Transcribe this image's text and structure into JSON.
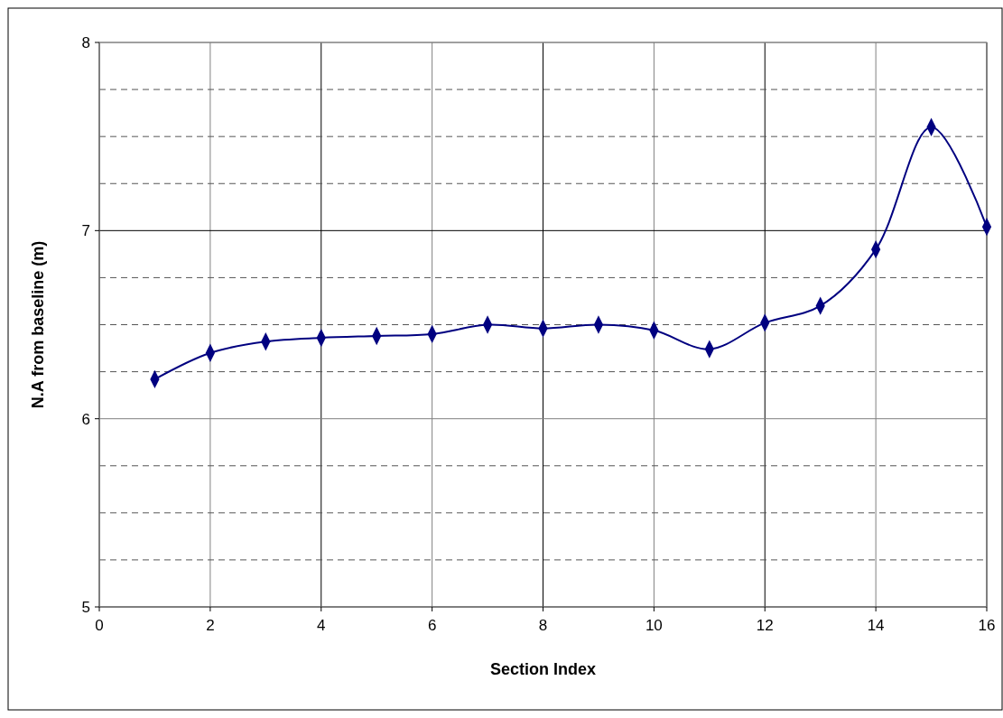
{
  "chart_data": {
    "type": "line",
    "xlabel": "Section Index",
    "ylabel": "N.A from baseline (m)",
    "x": [
      1,
      2,
      3,
      4,
      5,
      6,
      7,
      8,
      9,
      10,
      11,
      12,
      13,
      14,
      15,
      16
    ],
    "series": [
      {
        "color": "#000080",
        "values": [
          6.21,
          6.35,
          6.41,
          6.43,
          6.44,
          6.45,
          6.5,
          6.48,
          6.5,
          6.47,
          6.37,
          6.51,
          6.6,
          6.9,
          7.55,
          7.02
        ]
      }
    ],
    "xlim": [
      0,
      16
    ],
    "xticks": [
      0,
      2,
      4,
      6,
      8,
      10,
      12,
      14,
      16
    ],
    "ylim": [
      5,
      8
    ],
    "yticks": [
      5,
      {
        "value": 5.25,
        "label": null
      },
      {
        "value": 5.5,
        "label": null
      },
      {
        "value": 5.75,
        "label": null
      },
      6,
      {
        "value": 6.25,
        "label": null
      },
      {
        "value": 6.5,
        "label": null
      },
      {
        "value": 6.75,
        "label": null
      },
      7,
      {
        "value": 7.25,
        "label": null
      },
      {
        "value": 7.5,
        "label": null
      },
      {
        "value": 7.75,
        "label": null
      },
      8
    ],
    "grid": true,
    "marker": "diamond",
    "line_style": "solid"
  }
}
